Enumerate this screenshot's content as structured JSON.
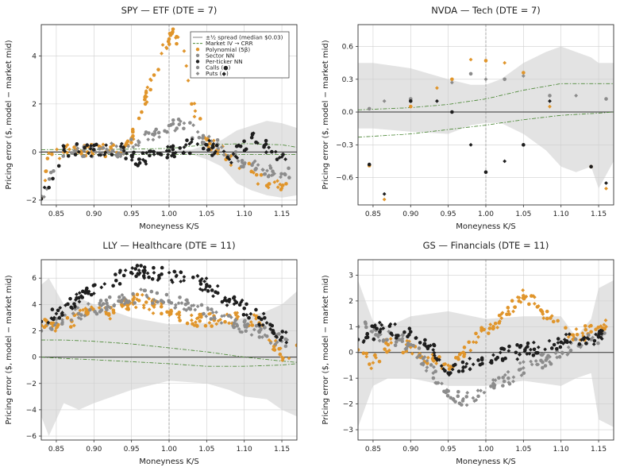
{
  "figure": {
    "panels": [
      {
        "title": "SPY — ETF   (DTE = 7)",
        "xlabel": "Moneyness  K/S",
        "ylabel": "Pricing error ($, model − market mid)"
      },
      {
        "title": "NVDA — Tech   (DTE = 7)",
        "xlabel": "Moneyness  K/S",
        "ylabel": "Pricing error ($, model − market mid)"
      },
      {
        "title": "LLY — Healthcare   (DTE = 11)",
        "xlabel": "Moneyness  K/S",
        "ylabel": "Pricing error ($, model − market mid)"
      },
      {
        "title": "GS — Financials   (DTE = 11)",
        "xlabel": "Moneyness  K/S",
        "ylabel": "Pricing error ($, model − market mid)"
      }
    ],
    "legend": {
      "spread": "±½ spread (median $0.03)",
      "iv": "Market IV → CRR",
      "poly": "Polynomial (5β)",
      "sector": "Sector NN",
      "ticker": "Per-ticker NN",
      "calls": "Calls (●)",
      "puts": "Puts (◆)"
    }
  },
  "chart_data": [
    {
      "type": "scatter",
      "title": "SPY — ETF   (DTE = 7)",
      "xlabel": "Moneyness  K/S",
      "ylabel": "Pricing error ($, model − market mid)",
      "xlim": [
        0.83,
        1.17
      ],
      "ylim": [
        -2.2,
        5.3
      ],
      "xticks": [
        0.85,
        0.9,
        0.95,
        1.0,
        1.05,
        1.1,
        1.15
      ],
      "yticks": [
        -2,
        0,
        2,
        4
      ],
      "grid": true,
      "legend_position": "top-right",
      "colors": {
        "poly": "#e0952b",
        "sector": "#8c8c8c",
        "ticker": "#1e1e1e",
        "band": "#e3e3e3",
        "iv": "#4f8a3a"
      },
      "spread_band": {
        "x": [
          0.83,
          0.95,
          1.0,
          1.03,
          1.05,
          1.07,
          1.09,
          1.11,
          1.13,
          1.15,
          1.17
        ],
        "upper": [
          0.05,
          0.05,
          0.05,
          0.1,
          0.3,
          0.5,
          0.9,
          1.1,
          1.3,
          1.2,
          1.0
        ],
        "lower": [
          -0.05,
          -0.05,
          -0.05,
          -0.1,
          -0.3,
          -0.6,
          -1.3,
          -1.6,
          -1.8,
          -1.9,
          -1.8
        ]
      },
      "iv_curve": {
        "x": [
          0.83,
          0.95,
          1.0,
          1.05,
          1.1,
          1.15,
          1.17
        ],
        "upper": [
          0.1,
          0.12,
          0.15,
          0.3,
          0.35,
          0.3,
          0.2
        ],
        "lower": [
          -0.1,
          -0.1,
          -0.1,
          -0.1,
          -0.1,
          -0.1,
          -0.1
        ]
      },
      "series": [
        {
          "name": "Polynomial (5β)",
          "points": [
            [
              0.83,
              -1.9
            ],
            [
              0.84,
              -0.05
            ],
            [
              0.86,
              0.0
            ],
            [
              0.88,
              0.0
            ],
            [
              0.9,
              0.02
            ],
            [
              0.92,
              0.05
            ],
            [
              0.94,
              0.2
            ],
            [
              0.95,
              0.6
            ],
            [
              0.96,
              1.4
            ],
            [
              0.97,
              2.3
            ],
            [
              0.98,
              3.2
            ],
            [
              0.99,
              4.1
            ],
            [
              1.0,
              4.7
            ],
            [
              1.005,
              5.0
            ],
            [
              1.01,
              4.8
            ],
            [
              1.02,
              4.2
            ],
            [
              1.03,
              2.0
            ],
            [
              1.05,
              0.5
            ],
            [
              1.08,
              -0.2
            ],
            [
              1.11,
              -0.8
            ],
            [
              1.13,
              -1.4
            ],
            [
              1.15,
              -1.5
            ]
          ]
        },
        {
          "name": "Sector NN",
          "points": [
            [
              0.83,
              -1.85
            ],
            [
              0.86,
              0.05
            ],
            [
              0.9,
              0.05
            ],
            [
              0.94,
              0.1
            ],
            [
              0.96,
              0.4
            ],
            [
              0.98,
              0.7
            ],
            [
              1.0,
              1.1
            ],
            [
              1.02,
              1.2
            ],
            [
              1.04,
              0.6
            ],
            [
              1.07,
              0.2
            ],
            [
              1.1,
              -0.5
            ],
            [
              1.14,
              -0.9
            ]
          ]
        },
        {
          "name": "Per-ticker NN",
          "points": [
            [
              0.83,
              -1.95
            ],
            [
              0.86,
              0.08
            ],
            [
              0.9,
              0.1
            ],
            [
              0.94,
              0.05
            ],
            [
              0.96,
              -0.3
            ],
            [
              0.98,
              -0.1
            ],
            [
              1.0,
              0.05
            ],
            [
              1.02,
              0.2
            ],
            [
              1.05,
              0.3
            ],
            [
              1.08,
              -0.3
            ],
            [
              1.11,
              0.6
            ],
            [
              1.15,
              -0.2
            ]
          ]
        }
      ]
    },
    {
      "type": "scatter",
      "title": "NVDA — Tech   (DTE = 7)",
      "xlabel": "Moneyness  K/S",
      "ylabel": "Pricing error ($, model − market mid)",
      "xlim": [
        0.83,
        1.17
      ],
      "ylim": [
        -0.85,
        0.8
      ],
      "xticks": [
        0.85,
        0.9,
        0.95,
        1.0,
        1.05,
        1.1,
        1.15
      ],
      "yticks": [
        -0.6,
        -0.3,
        0.0,
        0.3,
        0.6
      ],
      "grid": true,
      "spread_band": {
        "x": [
          0.83,
          0.85,
          0.9,
          0.95,
          0.98,
          1.0,
          1.02,
          1.05,
          1.08,
          1.1,
          1.12,
          1.14,
          1.15,
          1.17
        ],
        "upper": [
          0.45,
          0.45,
          0.4,
          0.3,
          0.25,
          0.25,
          0.3,
          0.45,
          0.55,
          0.6,
          0.55,
          0.5,
          0.45,
          0.45
        ],
        "lower": [
          -0.15,
          -0.15,
          -0.18,
          -0.2,
          -0.12,
          -0.1,
          -0.1,
          -0.2,
          -0.35,
          -0.5,
          -0.55,
          -0.5,
          -0.7,
          -0.45
        ]
      },
      "iv_curve": {
        "x": [
          0.83,
          0.9,
          0.95,
          1.0,
          1.05,
          1.1,
          1.15,
          1.17
        ],
        "upper": [
          0.02,
          0.04,
          0.07,
          0.12,
          0.2,
          0.26,
          0.26,
          0.26
        ],
        "lower": [
          -0.23,
          -0.2,
          -0.16,
          -0.12,
          -0.07,
          -0.03,
          -0.01,
          0.0
        ]
      },
      "series": [
        {
          "name": "Polynomial (5β)",
          "points": [
            [
              0.845,
              -0.49
            ],
            [
              0.865,
              -0.8
            ],
            [
              0.9,
              0.05
            ],
            [
              0.935,
              0.22
            ],
            [
              0.955,
              0.3
            ],
            [
              0.98,
              0.48
            ],
            [
              1.0,
              0.47
            ],
            [
              1.025,
              0.45
            ],
            [
              1.05,
              0.36
            ],
            [
              1.085,
              0.05
            ],
            [
              1.14,
              -0.5
            ],
            [
              1.16,
              -0.7
            ]
          ]
        },
        {
          "name": "Sector NN",
          "points": [
            [
              0.845,
              0.03
            ],
            [
              0.865,
              0.1
            ],
            [
              0.9,
              0.12
            ],
            [
              0.955,
              0.27
            ],
            [
              0.98,
              0.35
            ],
            [
              1.0,
              0.3
            ],
            [
              1.025,
              0.3
            ],
            [
              1.05,
              0.33
            ],
            [
              1.085,
              0.15
            ],
            [
              1.12,
              0.15
            ],
            [
              1.16,
              0.12
            ]
          ]
        },
        {
          "name": "Per-ticker NN",
          "points": [
            [
              0.845,
              -0.48
            ],
            [
              0.865,
              -0.75
            ],
            [
              0.9,
              0.1
            ],
            [
              0.935,
              0.1
            ],
            [
              0.955,
              0.0
            ],
            [
              0.98,
              -0.3
            ],
            [
              1.0,
              -0.55
            ],
            [
              1.025,
              -0.45
            ],
            [
              1.05,
              -0.3
            ],
            [
              1.085,
              0.1
            ],
            [
              1.14,
              -0.5
            ],
            [
              1.16,
              -0.65
            ]
          ]
        }
      ]
    },
    {
      "type": "scatter",
      "title": "LLY — Healthcare   (DTE = 11)",
      "xlabel": "Moneyness  K/S",
      "ylabel": "Pricing error ($, model − market mid)",
      "xlim": [
        0.83,
        1.17
      ],
      "ylim": [
        -6.3,
        7.4
      ],
      "xticks": [
        0.85,
        0.9,
        0.95,
        1.0,
        1.05,
        1.1,
        1.15
      ],
      "yticks": [
        -6,
        -4,
        -2,
        0,
        2,
        4,
        6
      ],
      "grid": true,
      "spread_band": {
        "x": [
          0.83,
          0.84,
          0.86,
          0.88,
          0.9,
          0.95,
          1.0,
          1.05,
          1.08,
          1.1,
          1.13,
          1.15,
          1.17
        ],
        "upper": [
          5.5,
          6.0,
          4.0,
          4.5,
          4.0,
          3.0,
          2.5,
          2.6,
          2.7,
          3.0,
          3.5,
          4.0,
          5.0
        ],
        "lower": [
          -4.5,
          -6.0,
          -3.5,
          -4.0,
          -3.5,
          -2.5,
          -1.8,
          -2.0,
          -2.5,
          -3.0,
          -3.2,
          -4.0,
          -4.5
        ]
      },
      "iv_curve": {
        "x": [
          0.83,
          0.86,
          0.9,
          0.95,
          1.0,
          1.05,
          1.1,
          1.15,
          1.17
        ],
        "upper": [
          1.3,
          1.3,
          1.2,
          1.0,
          0.7,
          0.4,
          0.0,
          -0.3,
          -0.4
        ],
        "lower": [
          0.0,
          -0.1,
          -0.2,
          -0.35,
          -0.5,
          -0.7,
          -0.7,
          -0.6,
          -0.5
        ]
      },
      "series": [
        {
          "name": "Polynomial (5β)",
          "points": [
            [
              0.83,
              2.4
            ],
            [
              0.85,
              2.2
            ],
            [
              0.87,
              2.8
            ],
            [
              0.89,
              3.5
            ],
            [
              0.92,
              3.2
            ],
            [
              0.94,
              4.0
            ],
            [
              0.96,
              4.3
            ],
            [
              0.98,
              3.8
            ],
            [
              1.0,
              3.4
            ],
            [
              1.03,
              2.8
            ],
            [
              1.06,
              2.8
            ],
            [
              1.09,
              2.9
            ],
            [
              1.12,
              2.6
            ],
            [
              1.15,
              0.0
            ],
            [
              1.17,
              0.9
            ]
          ]
        },
        {
          "name": "Sector NN",
          "points": [
            [
              0.83,
              2.0
            ],
            [
              0.85,
              2.6
            ],
            [
              0.88,
              3.3
            ],
            [
              0.91,
              3.9
            ],
            [
              0.94,
              4.5
            ],
            [
              0.97,
              4.7
            ],
            [
              1.0,
              4.2
            ],
            [
              1.03,
              3.9
            ],
            [
              1.06,
              3.0
            ],
            [
              1.09,
              2.5
            ],
            [
              1.12,
              1.9
            ],
            [
              1.15,
              1.2
            ]
          ]
        },
        {
          "name": "Per-ticker NN",
          "points": [
            [
              0.83,
              2.7
            ],
            [
              0.85,
              3.3
            ],
            [
              0.88,
              4.5
            ],
            [
              0.91,
              5.3
            ],
            [
              0.94,
              6.2
            ],
            [
              0.96,
              6.6
            ],
            [
              0.99,
              6.3
            ],
            [
              1.02,
              6.1
            ],
            [
              1.05,
              5.5
            ],
            [
              1.08,
              4.2
            ],
            [
              1.1,
              3.7
            ],
            [
              1.13,
              2.6
            ],
            [
              1.15,
              1.5
            ]
          ]
        }
      ]
    },
    {
      "type": "scatter",
      "title": "GS — Financials   (DTE = 11)",
      "xlabel": "Moneyness  K/S",
      "ylabel": "Pricing error ($, model − market mid)",
      "xlim": [
        0.83,
        1.17
      ],
      "ylim": [
        -3.4,
        3.6
      ],
      "xticks": [
        0.85,
        0.9,
        0.95,
        1.0,
        1.05,
        1.1,
        1.15
      ],
      "yticks": [
        -3,
        -2,
        -1,
        0,
        1,
        2,
        3
      ],
      "grid": true,
      "spread_band": {
        "x": [
          0.83,
          0.85,
          0.87,
          0.9,
          0.95,
          1.0,
          1.05,
          1.1,
          1.12,
          1.14,
          1.15,
          1.17
        ],
        "upper": [
          2.8,
          1.2,
          1.0,
          1.4,
          1.6,
          1.3,
          1.4,
          1.4,
          0.6,
          1.3,
          2.5,
          2.8
        ],
        "lower": [
          -2.9,
          -1.3,
          -1.0,
          -1.0,
          -1.3,
          -1.3,
          -1.1,
          -1.3,
          -1.0,
          -0.8,
          -2.6,
          -2.9
        ]
      },
      "series": [
        {
          "name": "Polynomial (5β)",
          "points": [
            [
              0.83,
              0.1
            ],
            [
              0.85,
              -0.4
            ],
            [
              0.87,
              0.3
            ],
            [
              0.9,
              0.2
            ],
            [
              0.93,
              -0.3
            ],
            [
              0.95,
              -0.5
            ],
            [
              0.97,
              0.0
            ],
            [
              0.99,
              0.6
            ],
            [
              1.01,
              1.0
            ],
            [
              1.03,
              1.6
            ],
            [
              1.05,
              2.2
            ],
            [
              1.07,
              1.8
            ],
            [
              1.09,
              1.2
            ],
            [
              1.11,
              0.6
            ],
            [
              1.14,
              0.8
            ],
            [
              1.16,
              1.0
            ]
          ]
        },
        {
          "name": "Sector NN",
          "points": [
            [
              0.83,
              1.0
            ],
            [
              0.86,
              0.7
            ],
            [
              0.9,
              0.3
            ],
            [
              0.93,
              -0.8
            ],
            [
              0.95,
              -1.5
            ],
            [
              0.97,
              -1.8
            ],
            [
              0.99,
              -1.7
            ],
            [
              1.01,
              -1.2
            ],
            [
              1.03,
              -1.0
            ],
            [
              1.05,
              -0.6
            ],
            [
              1.08,
              -0.3
            ],
            [
              1.11,
              0.2
            ],
            [
              1.14,
              0.5
            ]
          ]
        },
        {
          "name": "Per-ticker NN",
          "points": [
            [
              0.83,
              0.5
            ],
            [
              0.86,
              0.9
            ],
            [
              0.9,
              0.8
            ],
            [
              0.93,
              0.1
            ],
            [
              0.95,
              -0.8
            ],
            [
              0.97,
              -0.6
            ],
            [
              0.99,
              -0.3
            ],
            [
              1.01,
              -0.1
            ],
            [
              1.04,
              0.0
            ],
            [
              1.07,
              0.2
            ],
            [
              1.1,
              0.4
            ],
            [
              1.13,
              0.5
            ],
            [
              1.15,
              0.6
            ]
          ]
        }
      ]
    }
  ]
}
